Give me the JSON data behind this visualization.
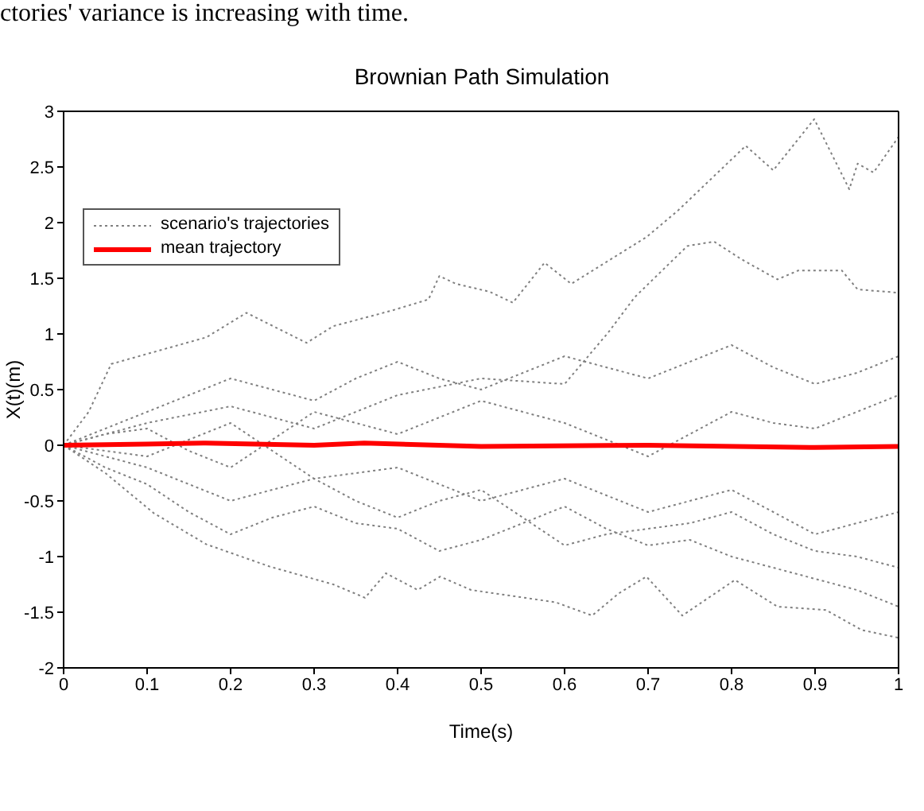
{
  "chart_data": {
    "type": "line",
    "title": "Brownian Path Simulation",
    "xlabel": "Time(s)",
    "ylabel": "X(t)(m)",
    "annotations": [
      "ctories' variance is increasing with time."
    ],
    "xlim": [
      0,
      1
    ],
    "xticks": [
      0,
      0.1,
      0.2,
      0.3,
      0.4,
      0.5,
      0.6,
      0.7,
      0.8,
      0.9,
      1
    ],
    "ylim": [
      -2,
      3
    ],
    "yticks": [
      -2,
      -1.5,
      -1,
      -0.5,
      0,
      0.5,
      1,
      1.5,
      2,
      2.5,
      3
    ],
    "legend": "top left",
    "marker": "none",
    "series": [
      {
        "name": "scenario's trajectories",
        "color": "#808080",
        "line_style": "dotted",
        "x": [
          0,
          0.03,
          0.057,
          0.171,
          0.219,
          0.291,
          0.323,
          0.393,
          0.437,
          0.45,
          0.47,
          0.51,
          0.538,
          0.576,
          0.608,
          0.698,
          0.736,
          0.817,
          0.85,
          0.899,
          0.941,
          0.951,
          0.97,
          1
        ],
        "values": [
          0,
          0.3,
          0.73,
          0.97,
          1.19,
          0.92,
          1.07,
          1.21,
          1.31,
          1.52,
          1.45,
          1.38,
          1.28,
          1.64,
          1.45,
          1.87,
          2.11,
          2.69,
          2.47,
          2.93,
          2.3,
          2.53,
          2.45,
          2.77
        ]
      },
      {
        "color": "#808080",
        "line_style": "dotted",
        "x": [
          0,
          0.1,
          0.2,
          0.3,
          0.4,
          0.5,
          0.6,
          0.652,
          0.684,
          0.747,
          0.779,
          0.812,
          0.855,
          0.88,
          0.932,
          0.951,
          1
        ],
        "values": [
          0,
          0.2,
          0.35,
          0.15,
          0.45,
          0.6,
          0.55,
          1.01,
          1.33,
          1.79,
          1.83,
          1.67,
          1.49,
          1.57,
          1.57,
          1.4,
          1.37
        ]
      },
      {
        "color": "#808080",
        "line_style": "dotted",
        "x": [
          0,
          0.05,
          0.108,
          0.171,
          0.247,
          0.323,
          0.361,
          0.386,
          0.424,
          0.451,
          0.488,
          0.589,
          0.633,
          0.665,
          0.698,
          0.741,
          0.804,
          0.855,
          0.913,
          0.956,
          1
        ],
        "values": [
          0,
          -0.25,
          -0.61,
          -0.89,
          -1.09,
          -1.25,
          -1.37,
          -1.15,
          -1.3,
          -1.18,
          -1.3,
          -1.41,
          -1.53,
          -1.33,
          -1.18,
          -1.53,
          -1.21,
          -1.45,
          -1.48,
          -1.66,
          -1.73
        ]
      },
      {
        "color": "#808080",
        "line_style": "dotted",
        "x": [
          0,
          0.05,
          0.1,
          0.15,
          0.2,
          0.25,
          0.3,
          0.35,
          0.4,
          0.45,
          0.5,
          0.55,
          0.6,
          0.65,
          0.7,
          0.75,
          0.8,
          0.85,
          0.9,
          0.95,
          1
        ],
        "values": [
          0,
          -0.2,
          -0.35,
          -0.6,
          -0.8,
          -0.65,
          -0.55,
          -0.7,
          -0.75,
          -0.95,
          -0.85,
          -0.7,
          -0.55,
          -0.75,
          -0.9,
          -0.85,
          -1.0,
          -1.1,
          -1.2,
          -1.3,
          -1.45
        ]
      },
      {
        "color": "#808080",
        "line_style": "dotted",
        "x": [
          0,
          0.05,
          0.1,
          0.15,
          0.2,
          0.25,
          0.3,
          0.35,
          0.4,
          0.45,
          0.5,
          0.55,
          0.6,
          0.65,
          0.7,
          0.75,
          0.8,
          0.85,
          0.9,
          0.95,
          1
        ],
        "values": [
          0,
          0.15,
          0.3,
          0.45,
          0.6,
          0.5,
          0.4,
          0.6,
          0.75,
          0.6,
          0.5,
          0.65,
          0.8,
          0.7,
          0.6,
          0.75,
          0.9,
          0.7,
          0.55,
          0.65,
          0.8
        ]
      },
      {
        "color": "#808080",
        "line_style": "dotted",
        "x": [
          0,
          0.05,
          0.1,
          0.15,
          0.2,
          0.25,
          0.3,
          0.35,
          0.4,
          0.45,
          0.5,
          0.55,
          0.6,
          0.65,
          0.7,
          0.75,
          0.8,
          0.85,
          0.9,
          0.95,
          1
        ],
        "values": [
          0,
          -0.05,
          -0.1,
          0.05,
          0.2,
          -0.05,
          -0.3,
          -0.25,
          -0.2,
          -0.35,
          -0.5,
          -0.4,
          -0.3,
          -0.45,
          -0.6,
          -0.5,
          -0.4,
          -0.6,
          -0.8,
          -0.7,
          -0.6
        ]
      },
      {
        "color": "#808080",
        "line_style": "dotted",
        "x": [
          0,
          0.05,
          0.1,
          0.15,
          0.2,
          0.25,
          0.3,
          0.35,
          0.4,
          0.45,
          0.5,
          0.55,
          0.6,
          0.65,
          0.7,
          0.75,
          0.8,
          0.85,
          0.9,
          0.95,
          1
        ],
        "values": [
          0,
          0.1,
          0.15,
          -0.05,
          -0.2,
          0.05,
          0.3,
          0.2,
          0.1,
          0.25,
          0.4,
          0.3,
          0.2,
          0.05,
          -0.1,
          0.1,
          0.3,
          0.2,
          0.15,
          0.3,
          0.45
        ]
      },
      {
        "color": "#808080",
        "line_style": "dotted",
        "x": [
          0,
          0.05,
          0.1,
          0.15,
          0.2,
          0.25,
          0.3,
          0.35,
          0.4,
          0.45,
          0.5,
          0.55,
          0.6,
          0.65,
          0.7,
          0.75,
          0.8,
          0.85,
          0.9,
          0.95,
          1
        ],
        "values": [
          0,
          -0.1,
          -0.2,
          -0.35,
          -0.5,
          -0.4,
          -0.3,
          -0.5,
          -0.65,
          -0.5,
          -0.4,
          -0.65,
          -0.9,
          -0.8,
          -0.75,
          -0.7,
          -0.6,
          -0.8,
          -0.95,
          -1.0,
          -1.1
        ]
      },
      {
        "name": "mean trajectory",
        "color": "#ff0000",
        "line_style": "solid",
        "x": [
          0,
          0.1,
          0.17,
          0.3,
          0.36,
          0.5,
          0.7,
          0.9,
          1
        ],
        "values": [
          0,
          0.01,
          0.02,
          0,
          0.02,
          -0.01,
          0,
          -0.02,
          -0.01
        ]
      }
    ]
  }
}
